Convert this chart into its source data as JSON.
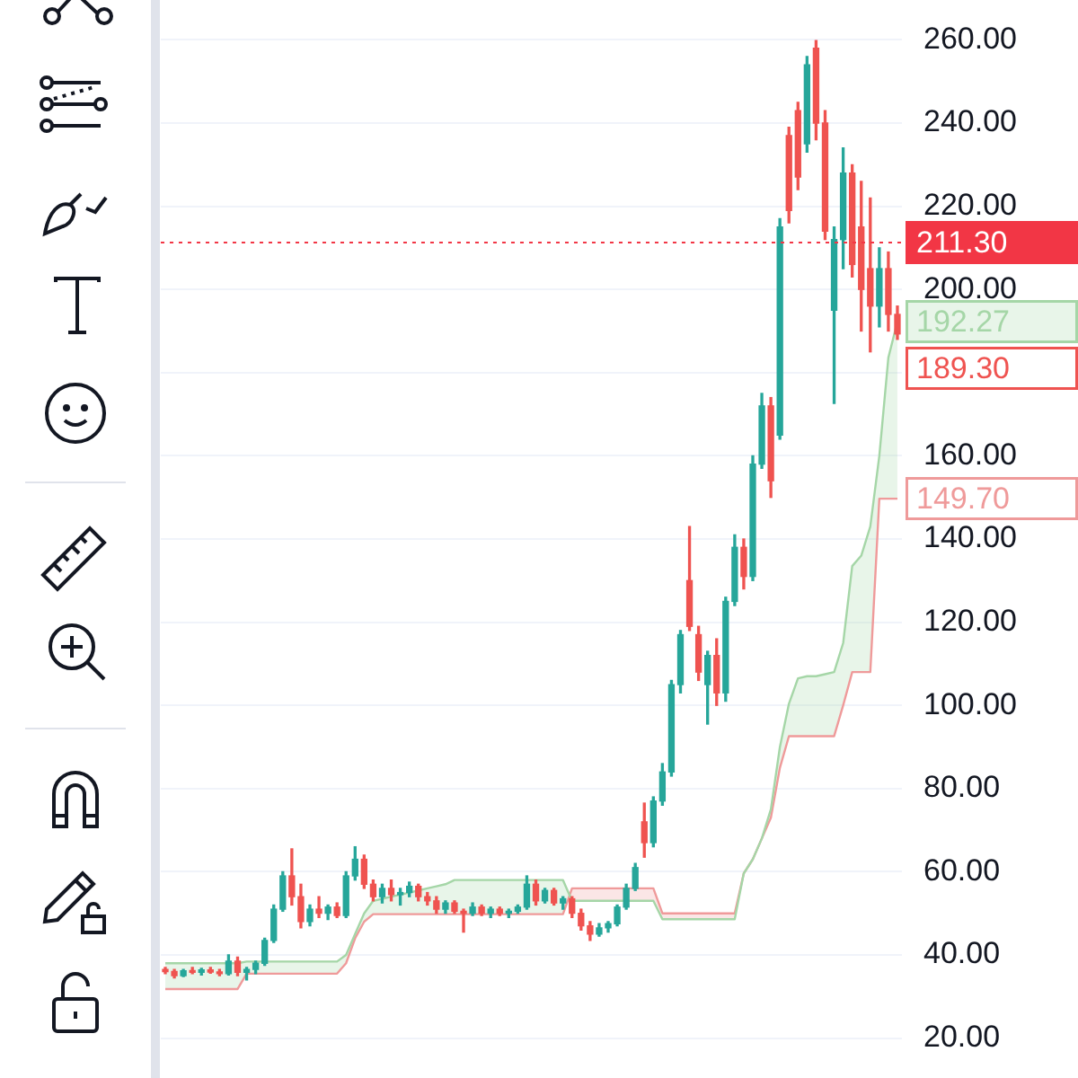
{
  "chart_data": {
    "type": "candlestick",
    "categories": [
      null,
      null,
      null,
      null,
      null,
      null,
      null,
      null,
      null,
      null,
      null,
      null,
      null,
      null,
      null,
      null,
      null,
      null,
      null,
      null,
      null,
      null,
      null,
      null,
      null,
      null,
      null,
      null,
      null,
      null,
      null,
      null,
      null,
      null,
      null,
      null,
      null,
      null,
      null,
      null,
      null,
      null,
      null,
      null,
      null,
      null,
      null,
      null,
      null,
      null,
      null,
      null,
      null,
      null,
      null,
      null,
      null,
      null,
      null,
      null,
      null,
      null,
      null,
      null,
      null,
      null,
      null,
      null,
      null,
      null,
      null,
      null,
      null,
      null,
      null,
      null,
      null,
      null,
      null,
      null,
      null,
      null
    ],
    "ohlc": [
      [
        36.5,
        37,
        35.5,
        36
      ],
      [
        36,
        36.5,
        34.5,
        35
      ],
      [
        35,
        36.5,
        34.8,
        36.2
      ],
      [
        36.2,
        37,
        35.5,
        35.8
      ],
      [
        35.8,
        36.8,
        35.2,
        36.4
      ],
      [
        36.4,
        37,
        35.6,
        35.9
      ],
      [
        35.9,
        36.5,
        35,
        35.5
      ],
      [
        35.5,
        40,
        35.2,
        38.5
      ],
      [
        38.5,
        39.5,
        35,
        35.8
      ],
      [
        35.8,
        37,
        34,
        36.5
      ],
      [
        36.5,
        38.5,
        35.5,
        38
      ],
      [
        38,
        44,
        37.5,
        43.5
      ],
      [
        43.5,
        52,
        43,
        51
      ],
      [
        51,
        60,
        50.5,
        59
      ],
      [
        59,
        65.5,
        52,
        54
      ],
      [
        54,
        57,
        46.5,
        48
      ],
      [
        48,
        52,
        47,
        51
      ],
      [
        51,
        54,
        49,
        50
      ],
      [
        50,
        52,
        48.5,
        51.5
      ],
      [
        51.5,
        52.5,
        49,
        49.5
      ],
      [
        49.5,
        60,
        49,
        59
      ],
      [
        59,
        66,
        58,
        63
      ],
      [
        63,
        64,
        56,
        57
      ],
      [
        57,
        58,
        53,
        54
      ],
      [
        54,
        57,
        52.5,
        56
      ],
      [
        56,
        58,
        53,
        54.5
      ],
      [
        54.5,
        56,
        52,
        55
      ],
      [
        55,
        57.5,
        54,
        56.5
      ],
      [
        56.5,
        57,
        53,
        54
      ],
      [
        54,
        55,
        52,
        53
      ],
      [
        53,
        54,
        50,
        51
      ],
      [
        51,
        53,
        50,
        52.5
      ],
      [
        52.5,
        53,
        50,
        50.5
      ],
      [
        50.5,
        51,
        45.5,
        50
      ],
      [
        50,
        52.5,
        49.5,
        51.5
      ],
      [
        51.5,
        52,
        49.5,
        50
      ],
      [
        50,
        51.5,
        49,
        51
      ],
      [
        51,
        51.5,
        49.5,
        50
      ],
      [
        50,
        51,
        49,
        50.5
      ],
      [
        50.5,
        52,
        50,
        51.5
      ],
      [
        51.5,
        59,
        51,
        57
      ],
      [
        57,
        58,
        52,
        53
      ],
      [
        53,
        56,
        52.5,
        55.5
      ],
      [
        55.5,
        56,
        52,
        52.5
      ],
      [
        52.5,
        54,
        51,
        53.5
      ],
      [
        53.5,
        54,
        49,
        50
      ],
      [
        50,
        51,
        46,
        47
      ],
      [
        47,
        48,
        43.5,
        45
      ],
      [
        45,
        47.5,
        44.5,
        46.5
      ],
      [
        46.5,
        48,
        45.5,
        47.5
      ],
      [
        47.5,
        52,
        47,
        51.5
      ],
      [
        51.5,
        57,
        51,
        56
      ],
      [
        56,
        62,
        55.5,
        61
      ],
      [
        72,
        76.5,
        63.5,
        67
      ],
      [
        67,
        78,
        66,
        77
      ],
      [
        77,
        86,
        76,
        84
      ],
      [
        84,
        106,
        83,
        105
      ],
      [
        105,
        118,
        103,
        117
      ],
      [
        130,
        143,
        118,
        119
      ],
      [
        117,
        119,
        106,
        108
      ],
      [
        105,
        113,
        95.5,
        112
      ],
      [
        112,
        116,
        100,
        103
      ],
      [
        103,
        126,
        101,
        125
      ],
      [
        125,
        141,
        124,
        138
      ],
      [
        138,
        140,
        128,
        131
      ],
      [
        131,
        160,
        130,
        158
      ],
      [
        158,
        175,
        157,
        172
      ],
      [
        172,
        174,
        150,
        154
      ],
      [
        165,
        217,
        164,
        215
      ],
      [
        237,
        239,
        216,
        219
      ],
      [
        243,
        245,
        224,
        227
      ],
      [
        235,
        256,
        233,
        254
      ],
      [
        258,
        260,
        236,
        240
      ],
      [
        240,
        243,
        212,
        214
      ],
      [
        195,
        215,
        172.6,
        212
      ],
      [
        212,
        234,
        205,
        228
      ],
      [
        228,
        230,
        203,
        206
      ],
      [
        215,
        226,
        190,
        200
      ],
      [
        205,
        222,
        185,
        196
      ],
      [
        196,
        210,
        191,
        205
      ],
      [
        205,
        209,
        190,
        194
      ],
      [
        194,
        196,
        188,
        189.3
      ]
    ],
    "colors": [
      "#ef5350",
      "#ef5350",
      "#26a69a",
      "#ef5350",
      "#26a69a",
      "#ef5350",
      "#ef5350",
      "#26a69a",
      "#ef5350",
      "#26a69a",
      "#26a69a",
      "#26a69a",
      "#26a69a",
      "#26a69a",
      "#ef5350",
      "#ef5350",
      "#26a69a",
      "#ef5350",
      "#26a69a",
      "#ef5350",
      "#26a69a",
      "#26a69a",
      "#ef5350",
      "#ef5350",
      "#26a69a",
      "#ef5350",
      "#26a69a",
      "#26a69a",
      "#ef5350",
      "#ef5350",
      "#ef5350",
      "#26a69a",
      "#ef5350",
      "#ef5350",
      "#26a69a",
      "#ef5350",
      "#26a69a",
      "#ef5350",
      "#26a69a",
      "#26a69a",
      "#26a69a",
      "#ef5350",
      "#26a69a",
      "#ef5350",
      "#26a69a",
      "#ef5350",
      "#ef5350",
      "#ef5350",
      "#26a69a",
      "#26a69a",
      "#26a69a",
      "#26a69a",
      "#26a69a",
      "#ef5350",
      "#26a69a",
      "#26a69a",
      "#26a69a",
      "#26a69a",
      "#ef5350",
      "#ef5350",
      "#26a69a",
      "#ef5350",
      "#26a69a",
      "#26a69a",
      "#ef5350",
      "#26a69a",
      "#26a69a",
      "#ef5350",
      "#26a69a",
      "#ef5350",
      "#ef5350",
      "#26a69a",
      "#ef5350",
      "#ef5350",
      "#26a69a",
      "#26a69a",
      "#ef5350",
      "#ef5350",
      "#ef5350",
      "#26a69a",
      "#ef5350",
      "#ef5350"
    ],
    "series": [
      {
        "type": "line",
        "color": "#a5d6a7",
        "values": [
          38,
          38,
          38,
          38,
          38,
          38,
          38,
          38,
          38,
          38.4,
          38.4,
          38.4,
          38.4,
          38.4,
          38.4,
          38.4,
          38.4,
          38.4,
          38.4,
          38.4,
          40,
          45,
          50,
          53,
          53.5,
          54,
          54.5,
          55,
          55.5,
          56,
          56.5,
          57,
          58,
          58,
          58,
          58,
          58,
          58,
          58,
          58,
          58,
          58,
          58,
          58,
          58,
          53,
          53,
          53,
          53,
          53,
          53,
          53,
          53,
          53,
          53,
          48.6,
          48.6,
          48.6,
          48.6,
          48.6,
          48.6,
          48.6,
          48.6,
          48.6,
          59.6,
          63,
          68,
          75,
          90,
          100.4,
          106.5,
          107,
          107,
          107.5,
          108,
          115,
          133.5,
          136,
          143,
          160,
          183.6,
          192.27
        ],
        "lower": [
          31.8,
          31.8,
          31.8,
          31.8,
          31.8,
          31.8,
          31.8,
          31.8,
          31.8,
          35.5,
          35.5,
          35.5,
          35.5,
          35.5,
          35.5,
          35.5,
          35.5,
          35.5,
          35.5,
          35.5,
          38,
          44,
          48,
          49.8,
          49.8,
          49.8,
          49.8,
          49.8,
          49.8,
          49.8,
          49.8,
          49.8,
          49.8,
          49.8,
          49.8,
          49.8,
          49.8,
          49.8,
          49.8,
          49.8,
          49.8,
          49.8,
          49.8,
          49.8,
          49.8,
          56,
          56,
          56,
          56,
          56,
          56,
          56,
          56,
          56,
          56,
          50,
          50,
          50,
          50,
          50,
          50,
          50,
          50,
          50,
          59.6,
          63,
          68,
          73,
          85,
          92.6,
          92.6,
          92.6,
          92.6,
          92.6,
          92.6,
          100,
          108,
          108,
          108,
          149.7,
          149.7,
          149.7
        ],
        "upper": [
          38,
          38,
          38,
          38,
          38,
          38,
          38,
          38,
          38,
          38.4,
          38.4,
          38.4,
          38.4,
          38.4,
          38.4,
          38.4,
          38.4,
          38.4,
          38.4,
          38.4,
          40,
          45,
          50,
          53,
          53.5,
          54,
          54.5,
          55,
          55.5,
          56,
          56.5,
          57,
          58,
          58,
          58,
          58,
          58,
          58,
          58,
          58,
          58,
          58,
          58,
          58,
          58,
          53,
          53,
          53,
          53,
          53,
          53,
          53,
          53,
          53,
          53,
          48.6,
          48.6,
          48.6,
          48.6,
          48.6,
          48.6,
          48.6,
          48.6,
          48.6,
          59.6,
          63,
          68,
          75,
          90,
          100.4,
          106.5,
          107,
          107,
          107.5,
          108,
          115,
          133.5,
          136,
          143,
          160,
          183.6,
          192.27
        ],
        "value_labels": [
          null,
          null,
          null,
          null,
          null,
          null,
          null,
          null,
          null,
          null,
          null,
          null,
          null,
          null,
          null,
          null,
          null,
          null,
          null,
          null,
          null,
          null,
          null,
          null,
          null,
          null,
          null,
          null,
          null,
          null,
          null,
          null,
          null,
          null,
          null,
          null,
          null,
          null,
          null,
          null,
          null,
          null,
          null,
          null,
          null,
          null,
          null,
          null,
          null,
          null,
          null,
          null,
          null,
          null,
          null,
          null,
          null,
          null,
          null,
          null,
          null,
          null,
          null,
          null,
          null,
          null,
          null,
          null,
          null,
          null,
          null,
          null,
          null,
          null,
          null,
          null,
          null,
          null,
          null,
          null,
          null,
          "192.27"
        ]
      },
      {
        "type": "line",
        "color": "#ef9a9a",
        "values": [
          31.8,
          31.8,
          31.8,
          31.8,
          31.8,
          31.8,
          31.8,
          31.8,
          31.8,
          35.5,
          35.5,
          35.5,
          35.5,
          35.5,
          35.5,
          35.5,
          35.5,
          35.5,
          35.5,
          35.5,
          38,
          44,
          48,
          49.8,
          49.8,
          49.8,
          49.8,
          49.8,
          49.8,
          49.8,
          49.8,
          49.8,
          49.8,
          49.8,
          49.8,
          49.8,
          49.8,
          49.8,
          49.8,
          49.8,
          49.8,
          49.8,
          49.8,
          49.8,
          49.8,
          56,
          56,
          56,
          56,
          56,
          56,
          56,
          56,
          56,
          56,
          50,
          50,
          50,
          50,
          50,
          50,
          50,
          50,
          50,
          59.6,
          63,
          68,
          73,
          85,
          92.6,
          92.6,
          92.6,
          92.6,
          92.6,
          92.6,
          100,
          108,
          108,
          108,
          149.7,
          149.7,
          149.7
        ],
        "value_labels": [
          null,
          null,
          null,
          null,
          null,
          null,
          null,
          null,
          null,
          null,
          null,
          null,
          null,
          null,
          null,
          null,
          null,
          null,
          null,
          null,
          null,
          null,
          null,
          null,
          null,
          null,
          null,
          null,
          null,
          null,
          null,
          null,
          null,
          null,
          null,
          null,
          null,
          null,
          null,
          null,
          null,
          null,
          null,
          null,
          null,
          null,
          null,
          null,
          null,
          null,
          null,
          null,
          null,
          null,
          null,
          null,
          null,
          null,
          null,
          null,
          null,
          null,
          null,
          null,
          null,
          null,
          null,
          null,
          null,
          null,
          null,
          null,
          null,
          null,
          null,
          null,
          null,
          null,
          null,
          null,
          null,
          "149.70"
        ]
      }
    ],
    "value_labels": [
      null,
      null,
      null,
      null,
      null,
      null,
      null,
      null,
      null,
      null,
      null,
      null,
      null,
      null,
      null,
      null,
      null,
      null,
      null,
      null,
      null,
      null,
      null,
      null,
      null,
      null,
      null,
      null,
      null,
      null,
      null,
      null,
      null,
      null,
      null,
      null,
      null,
      null,
      null,
      null,
      null,
      null,
      null,
      null,
      null,
      null,
      null,
      null,
      null,
      null,
      null,
      null,
      null,
      null,
      null,
      null,
      null,
      null,
      null,
      null,
      null,
      null,
      null,
      null,
      null,
      null,
      null,
      null,
      null,
      null,
      null,
      null,
      null,
      null,
      null,
      null,
      null,
      null,
      null,
      null,
      null,
      "189.30"
    ],
    "ylim": [
      20,
      260
    ],
    "yticks": [
      {
        "value": 20,
        "label": "20.00"
      },
      {
        "value": 40,
        "label": "40.00"
      },
      {
        "value": 60,
        "label": "60.00"
      },
      {
        "value": 80,
        "label": "80.00"
      },
      {
        "value": 100,
        "label": "100.00"
      },
      {
        "value": 120,
        "label": "120.00"
      },
      {
        "value": 140,
        "label": "140.00"
      },
      {
        "value": 160,
        "label": "160.00"
      },
      {
        "value": 180,
        "label": null
      },
      {
        "value": 200,
        "label": "200.00"
      },
      {
        "value": 220,
        "label": "220.00"
      },
      {
        "value": 240,
        "label": "240.00"
      },
      {
        "value": 260,
        "label": "260.00"
      }
    ],
    "grid": "y",
    "legend": false,
    "ref_lines": [
      {
        "axis": "y",
        "value": 211.3,
        "label": "211.30",
        "color": "#f23645",
        "line_style": "dotted"
      }
    ]
  }
}
